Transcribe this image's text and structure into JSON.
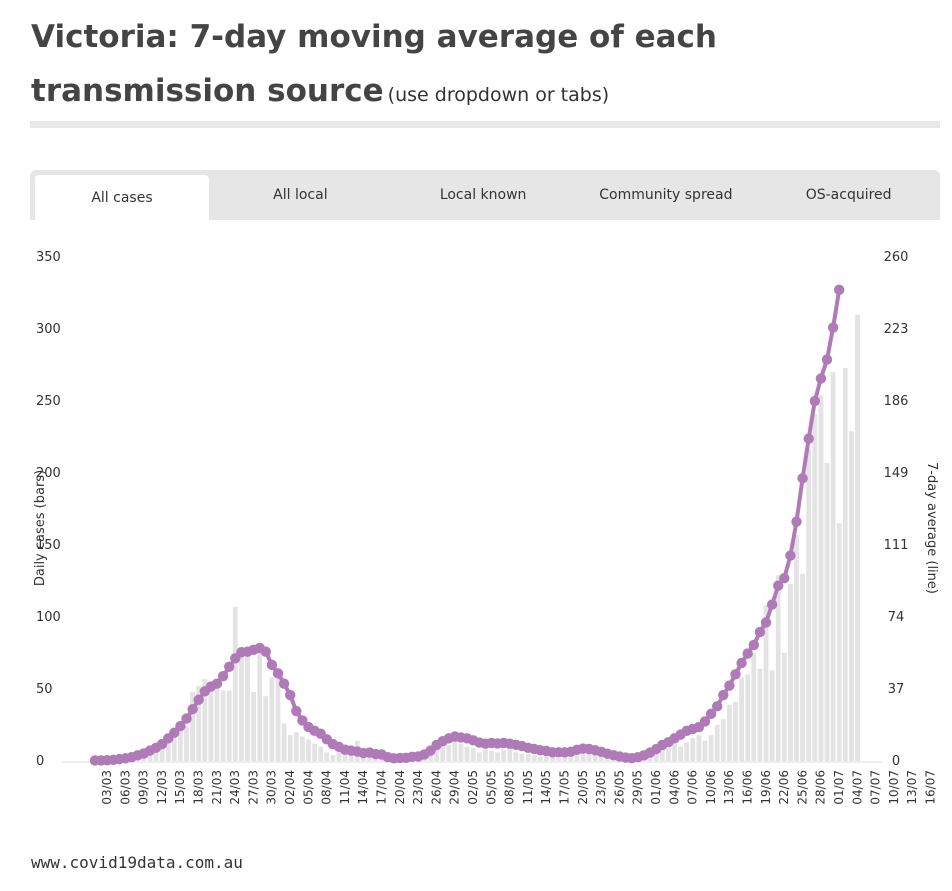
{
  "header": {
    "title_main": "Victoria: 7-day moving average of each transmission source",
    "title_sub": "(use dropdown or tabs)"
  },
  "tabs": [
    {
      "label": "All cases",
      "active": true
    },
    {
      "label": "All local",
      "active": false
    },
    {
      "label": "Local known",
      "active": false
    },
    {
      "label": "Community spread",
      "active": false
    },
    {
      "label": "OS-acquired",
      "active": false
    }
  ],
  "footer": {
    "source": "www.covid19data.com.au"
  },
  "colors": {
    "bar": "#e3e3e3",
    "line": "#b07ab8",
    "tab_bg": "#e6e6e6"
  },
  "chart_data": {
    "type": "bar",
    "ylabel": "Daily cases (bars)",
    "y2label": "7-day average (line)",
    "ylim": [
      0,
      350
    ],
    "y2lim": [
      0,
      260
    ],
    "yticks": [
      0,
      50,
      100,
      150,
      200,
      250,
      300,
      350
    ],
    "y2ticks": [
      0,
      37,
      74,
      111,
      149,
      186,
      223,
      260
    ],
    "x_tick_labels": [
      "03/03",
      "06/03",
      "09/03",
      "12/03",
      "15/03",
      "18/03",
      "21/03",
      "24/03",
      "27/03",
      "30/03",
      "02/04",
      "05/04",
      "08/04",
      "11/04",
      "14/04",
      "17/04",
      "20/04",
      "23/04",
      "26/04",
      "29/04",
      "02/05",
      "05/05",
      "08/05",
      "11/05",
      "14/05",
      "17/05",
      "20/05",
      "23/05",
      "26/05",
      "29/05",
      "01/06",
      "04/06",
      "07/06",
      "10/06",
      "13/06",
      "16/06",
      "19/06",
      "22/06",
      "25/06",
      "28/06",
      "01/07",
      "04/07",
      "07/07",
      "10/07",
      "13/07",
      "16/07"
    ],
    "start_date": "03/03",
    "bars": [
      0,
      0,
      0,
      1,
      1,
      2,
      3,
      5,
      4,
      6,
      8,
      10,
      14,
      18,
      25,
      24,
      48,
      52,
      57,
      51,
      50,
      49,
      49,
      107,
      79,
      78,
      48,
      80,
      45,
      58,
      60,
      26,
      18,
      20,
      17,
      15,
      12,
      10,
      6,
      4,
      6,
      5,
      9,
      14,
      4,
      4,
      3,
      2,
      2,
      1,
      2,
      1,
      2,
      4,
      5,
      7,
      9,
      10,
      11,
      14,
      12,
      10,
      9,
      6,
      8,
      7,
      6,
      8,
      9,
      6,
      5,
      5,
      4,
      3,
      3,
      3,
      2,
      3,
      3,
      4,
      5,
      5,
      4,
      4,
      5,
      3,
      2,
      2,
      1,
      1,
      3,
      4,
      7,
      8,
      9,
      12,
      10,
      13,
      16,
      18,
      14,
      18,
      25,
      29,
      39,
      41,
      58,
      60,
      75,
      64,
      108,
      63,
      129,
      75,
      123,
      157,
      130,
      217,
      241,
      254,
      207,
      270,
      165,
      273,
      229,
      310
    ],
    "avg": [
      0.3,
      0.3,
      0.4,
      0.6,
      1,
      1.4,
      2,
      3,
      4,
      5.5,
      7,
      9,
      12,
      15,
      18.5,
      22.5,
      27.5,
      32.5,
      37,
      39.5,
      41,
      45,
      50,
      54.5,
      57.7,
      58,
      59,
      60,
      58,
      51,
      46.5,
      41,
      35,
      26.5,
      21.5,
      18,
      16,
      14.5,
      11.5,
      9,
      7.5,
      6,
      5.5,
      5,
      4.2,
      4.5,
      3.7,
      3.5,
      2,
      1.4,
      1.6,
      1.7,
      2.2,
      2.4,
      3.5,
      5.5,
      8.5,
      10.5,
      12,
      13,
      12.5,
      12,
      11,
      9.8,
      9.2,
      9.6,
      9.3,
      9.6,
      9.2,
      8.6,
      7.9,
      7,
      6.4,
      5.7,
      5.3,
      4.6,
      4.6,
      4.6,
      4.9,
      5.9,
      6.6,
      6.4,
      5.7,
      4.9,
      3.9,
      3.1,
      2.4,
      1.8,
      1.5,
      2.0,
      3.0,
      4.5,
      6.3,
      8.5,
      10.0,
      12,
      14,
      16,
      17,
      18,
      21,
      25,
      29,
      35,
      40,
      46,
      52,
      57,
      61.6,
      68.4,
      73.5,
      83,
      93,
      97,
      109,
      127,
      150,
      171,
      191,
      203,
      213,
      230,
      250
    ]
  }
}
